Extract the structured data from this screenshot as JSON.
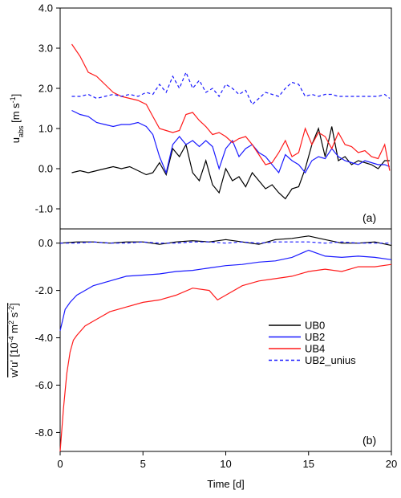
{
  "chart_data": [
    {
      "type": "line",
      "panel_label": "(a)",
      "ylabel": "u_abs [m s^-1]",
      "ylabel_parts": {
        "base": "u",
        "sub": "abs",
        "unit_open": " [m s",
        "sup": "-1",
        "unit_close": "]"
      },
      "xlim": [
        0,
        20
      ],
      "ylim": [
        -1.5,
        4.0
      ],
      "yticks": [
        -1.0,
        0.0,
        1.0,
        2.0,
        3.0,
        4.0
      ],
      "ytick_labels": [
        "-1.0",
        "0.0",
        "1.0",
        "2.0",
        "3.0",
        "4.0"
      ],
      "grid": false,
      "series": [
        {
          "name": "UB0",
          "color": "#000000",
          "dash": "solid",
          "x": [
            0.7,
            1.2,
            1.7,
            2.2,
            2.7,
            3.2,
            3.7,
            4.2,
            4.7,
            5.2,
            5.6,
            6.0,
            6.4,
            6.8,
            7.2,
            7.6,
            8.0,
            8.4,
            8.8,
            9.2,
            9.6,
            10.0,
            10.4,
            10.8,
            11.2,
            11.6,
            12.0,
            12.4,
            12.8,
            13.2,
            13.6,
            14.0,
            14.4,
            14.8,
            15.2,
            15.6,
            16.0,
            16.4,
            16.8,
            17.2,
            17.6,
            18.0,
            18.4,
            18.8,
            19.2,
            19.6,
            19.9
          ],
          "y": [
            -0.1,
            -0.05,
            -0.1,
            -0.05,
            0.0,
            0.05,
            0.0,
            0.05,
            -0.05,
            -0.15,
            -0.1,
            0.15,
            -0.15,
            0.5,
            0.3,
            0.6,
            -0.1,
            -0.3,
            0.2,
            -0.4,
            -0.6,
            0.0,
            -0.3,
            -0.2,
            -0.45,
            -0.1,
            -0.3,
            -0.5,
            -0.4,
            -0.6,
            -0.75,
            -0.5,
            -0.45,
            0.0,
            0.6,
            1.0,
            0.3,
            1.05,
            0.2,
            0.3,
            0.1,
            0.2,
            0.15,
            0.1,
            0.0,
            0.2,
            0.2
          ]
        },
        {
          "name": "UB2",
          "color": "#1a1aff",
          "dash": "solid",
          "x": [
            0.7,
            1.2,
            1.7,
            2.2,
            2.7,
            3.2,
            3.7,
            4.2,
            4.7,
            5.2,
            5.6,
            6.0,
            6.4,
            6.8,
            7.2,
            7.6,
            8.0,
            8.4,
            8.8,
            9.2,
            9.6,
            10.0,
            10.4,
            10.8,
            11.2,
            11.6,
            12.0,
            12.4,
            12.8,
            13.2,
            13.6,
            14.0,
            14.4,
            14.8,
            15.2,
            15.6,
            16.0,
            16.4,
            16.8,
            17.2,
            17.6,
            18.0,
            18.4,
            18.8,
            19.2,
            19.6,
            19.9
          ],
          "y": [
            1.45,
            1.35,
            1.3,
            1.15,
            1.1,
            1.05,
            1.1,
            1.1,
            1.15,
            1.05,
            0.85,
            0.3,
            -0.1,
            0.6,
            0.8,
            0.6,
            0.7,
            0.55,
            0.7,
            0.55,
            0.0,
            0.5,
            0.7,
            0.3,
            0.5,
            0.6,
            0.4,
            0.3,
            0.1,
            -0.1,
            0.35,
            0.2,
            0.1,
            -0.1,
            0.2,
            0.3,
            0.25,
            0.5,
            0.3,
            0.2,
            0.15,
            0.1,
            0.2,
            0.15,
            0.1,
            0.1,
            0.05
          ]
        },
        {
          "name": "UB4",
          "color": "#ff1a1a",
          "dash": "solid",
          "x": [
            0.7,
            1.2,
            1.7,
            2.2,
            2.7,
            3.2,
            3.7,
            4.2,
            4.7,
            5.2,
            5.6,
            6.0,
            6.4,
            6.8,
            7.2,
            7.6,
            8.0,
            8.4,
            8.8,
            9.2,
            9.6,
            10.0,
            10.4,
            10.8,
            11.2,
            11.6,
            12.0,
            12.4,
            12.8,
            13.2,
            13.6,
            14.0,
            14.4,
            14.8,
            15.2,
            15.6,
            16.0,
            16.4,
            16.8,
            17.2,
            17.6,
            18.0,
            18.4,
            18.8,
            19.2,
            19.6,
            19.9
          ],
          "y": [
            3.1,
            2.8,
            2.4,
            2.3,
            2.1,
            1.9,
            1.8,
            1.75,
            1.7,
            1.6,
            1.3,
            1.0,
            0.95,
            0.9,
            0.95,
            1.35,
            1.4,
            1.2,
            1.05,
            0.85,
            0.9,
            0.8,
            0.65,
            0.75,
            0.8,
            0.6,
            0.35,
            0.1,
            0.15,
            0.4,
            0.7,
            0.3,
            0.4,
            1.0,
            0.6,
            0.9,
            0.8,
            0.5,
            0.9,
            0.6,
            0.55,
            0.4,
            0.45,
            0.3,
            0.25,
            0.6,
            -0.05
          ]
        },
        {
          "name": "UB2_unius",
          "color": "#1a1aff",
          "dash": "dashed",
          "x": [
            0.7,
            1.2,
            1.7,
            2.2,
            2.7,
            3.2,
            3.7,
            4.2,
            4.7,
            5.2,
            5.6,
            6.0,
            6.4,
            6.8,
            7.2,
            7.6,
            8.0,
            8.4,
            8.8,
            9.2,
            9.6,
            10.0,
            10.4,
            10.8,
            11.2,
            11.6,
            12.0,
            12.4,
            12.8,
            13.2,
            13.6,
            14.0,
            14.4,
            14.8,
            15.2,
            15.6,
            16.0,
            16.4,
            16.8,
            17.2,
            17.6,
            18.0,
            18.4,
            18.8,
            19.2,
            19.6,
            19.9
          ],
          "y": [
            1.8,
            1.8,
            1.85,
            1.75,
            1.8,
            1.85,
            1.8,
            1.85,
            1.8,
            1.9,
            1.85,
            2.1,
            1.9,
            2.3,
            2.0,
            2.4,
            2.0,
            2.2,
            1.9,
            2.0,
            1.8,
            2.1,
            2.0,
            1.85,
            1.95,
            1.6,
            1.75,
            1.9,
            1.85,
            1.8,
            2.0,
            2.15,
            2.1,
            1.8,
            1.85,
            1.8,
            1.85,
            1.85,
            1.8,
            1.8,
            1.8,
            1.8,
            1.8,
            1.8,
            1.8,
            1.85,
            1.75
          ]
        }
      ]
    },
    {
      "type": "line",
      "panel_label": "(b)",
      "ylabel": "w'u' [10^-4 m^2 s^-2]",
      "ylabel_parts": {
        "base": "w'u'",
        "unit_open": " [10",
        "sup1": "-4",
        "mid1": " m",
        "sup2": "2",
        "mid2": " s",
        "sup3": "-2",
        "unit_close": "]"
      },
      "xlabel": "Time [d]",
      "xlim": [
        0,
        20
      ],
      "ylim": [
        -8.8,
        0.6
      ],
      "xticks": [
        0,
        5,
        10,
        15,
        20
      ],
      "xtick_labels": [
        "0",
        "5",
        "10",
        "15",
        "20"
      ],
      "yticks": [
        -8.0,
        -6.0,
        -4.0,
        -2.0,
        0.0
      ],
      "ytick_labels": [
        "-8.0",
        "-6.0",
        "-4.0",
        "-2.0",
        "0.0"
      ],
      "grid": false,
      "legend": {
        "position": "right"
      },
      "series": [
        {
          "name": "UB0",
          "color": "#000000",
          "dash": "solid",
          "x": [
            0,
            1,
            2,
            3,
            4,
            5,
            6,
            7,
            8,
            9,
            10,
            11,
            12,
            13,
            14,
            15,
            16,
            17,
            18,
            19,
            20
          ],
          "y": [
            0.0,
            0.05,
            0.05,
            0.0,
            0.05,
            0.05,
            -0.05,
            0.05,
            0.1,
            0.05,
            0.15,
            0.05,
            -0.05,
            0.15,
            0.2,
            0.3,
            0.15,
            0.0,
            0.0,
            0.05,
            -0.1
          ]
        },
        {
          "name": "UB2",
          "color": "#1a1aff",
          "dash": "solid",
          "x": [
            0,
            0.3,
            0.6,
            1,
            1.5,
            2,
            3,
            4,
            5,
            6,
            7,
            8,
            9,
            10,
            11,
            12,
            13,
            14,
            15,
            16,
            17,
            18,
            19,
            20
          ],
          "y": [
            -3.7,
            -2.8,
            -2.5,
            -2.2,
            -2.0,
            -1.8,
            -1.6,
            -1.4,
            -1.35,
            -1.3,
            -1.2,
            -1.15,
            -1.05,
            -0.95,
            -0.9,
            -0.8,
            -0.75,
            -0.6,
            -0.3,
            -0.55,
            -0.6,
            -0.55,
            -0.6,
            -0.7
          ]
        },
        {
          "name": "UB4",
          "color": "#ff1a1a",
          "dash": "solid",
          "x": [
            0,
            0.2,
            0.4,
            0.6,
            0.8,
            1,
            1.5,
            2,
            2.5,
            3,
            4,
            5,
            6,
            7,
            8,
            9,
            9.5,
            10,
            11,
            12,
            13,
            14,
            15,
            16,
            17,
            18,
            19,
            20
          ],
          "y": [
            -8.8,
            -7.0,
            -5.5,
            -4.6,
            -4.1,
            -3.9,
            -3.5,
            -3.3,
            -3.1,
            -2.9,
            -2.7,
            -2.5,
            -2.4,
            -2.2,
            -1.9,
            -2.0,
            -2.4,
            -2.2,
            -1.8,
            -1.6,
            -1.5,
            -1.4,
            -1.2,
            -1.1,
            -1.2,
            -1.0,
            -1.0,
            -0.9
          ]
        },
        {
          "name": "UB2_unius",
          "color": "#1a1aff",
          "dash": "dashed",
          "x": [
            0,
            1,
            2,
            3,
            4,
            5,
            6,
            7,
            8,
            9,
            10,
            11,
            12,
            13,
            14,
            15,
            16,
            17,
            18,
            19,
            20
          ],
          "y": [
            0.0,
            0.0,
            0.05,
            0.0,
            0.0,
            0.05,
            0.0,
            0.0,
            0.05,
            0.05,
            0.0,
            0.05,
            0.0,
            0.05,
            0.05,
            0.05,
            0.0,
            0.05,
            0.0,
            0.0,
            0.0
          ]
        }
      ]
    }
  ]
}
